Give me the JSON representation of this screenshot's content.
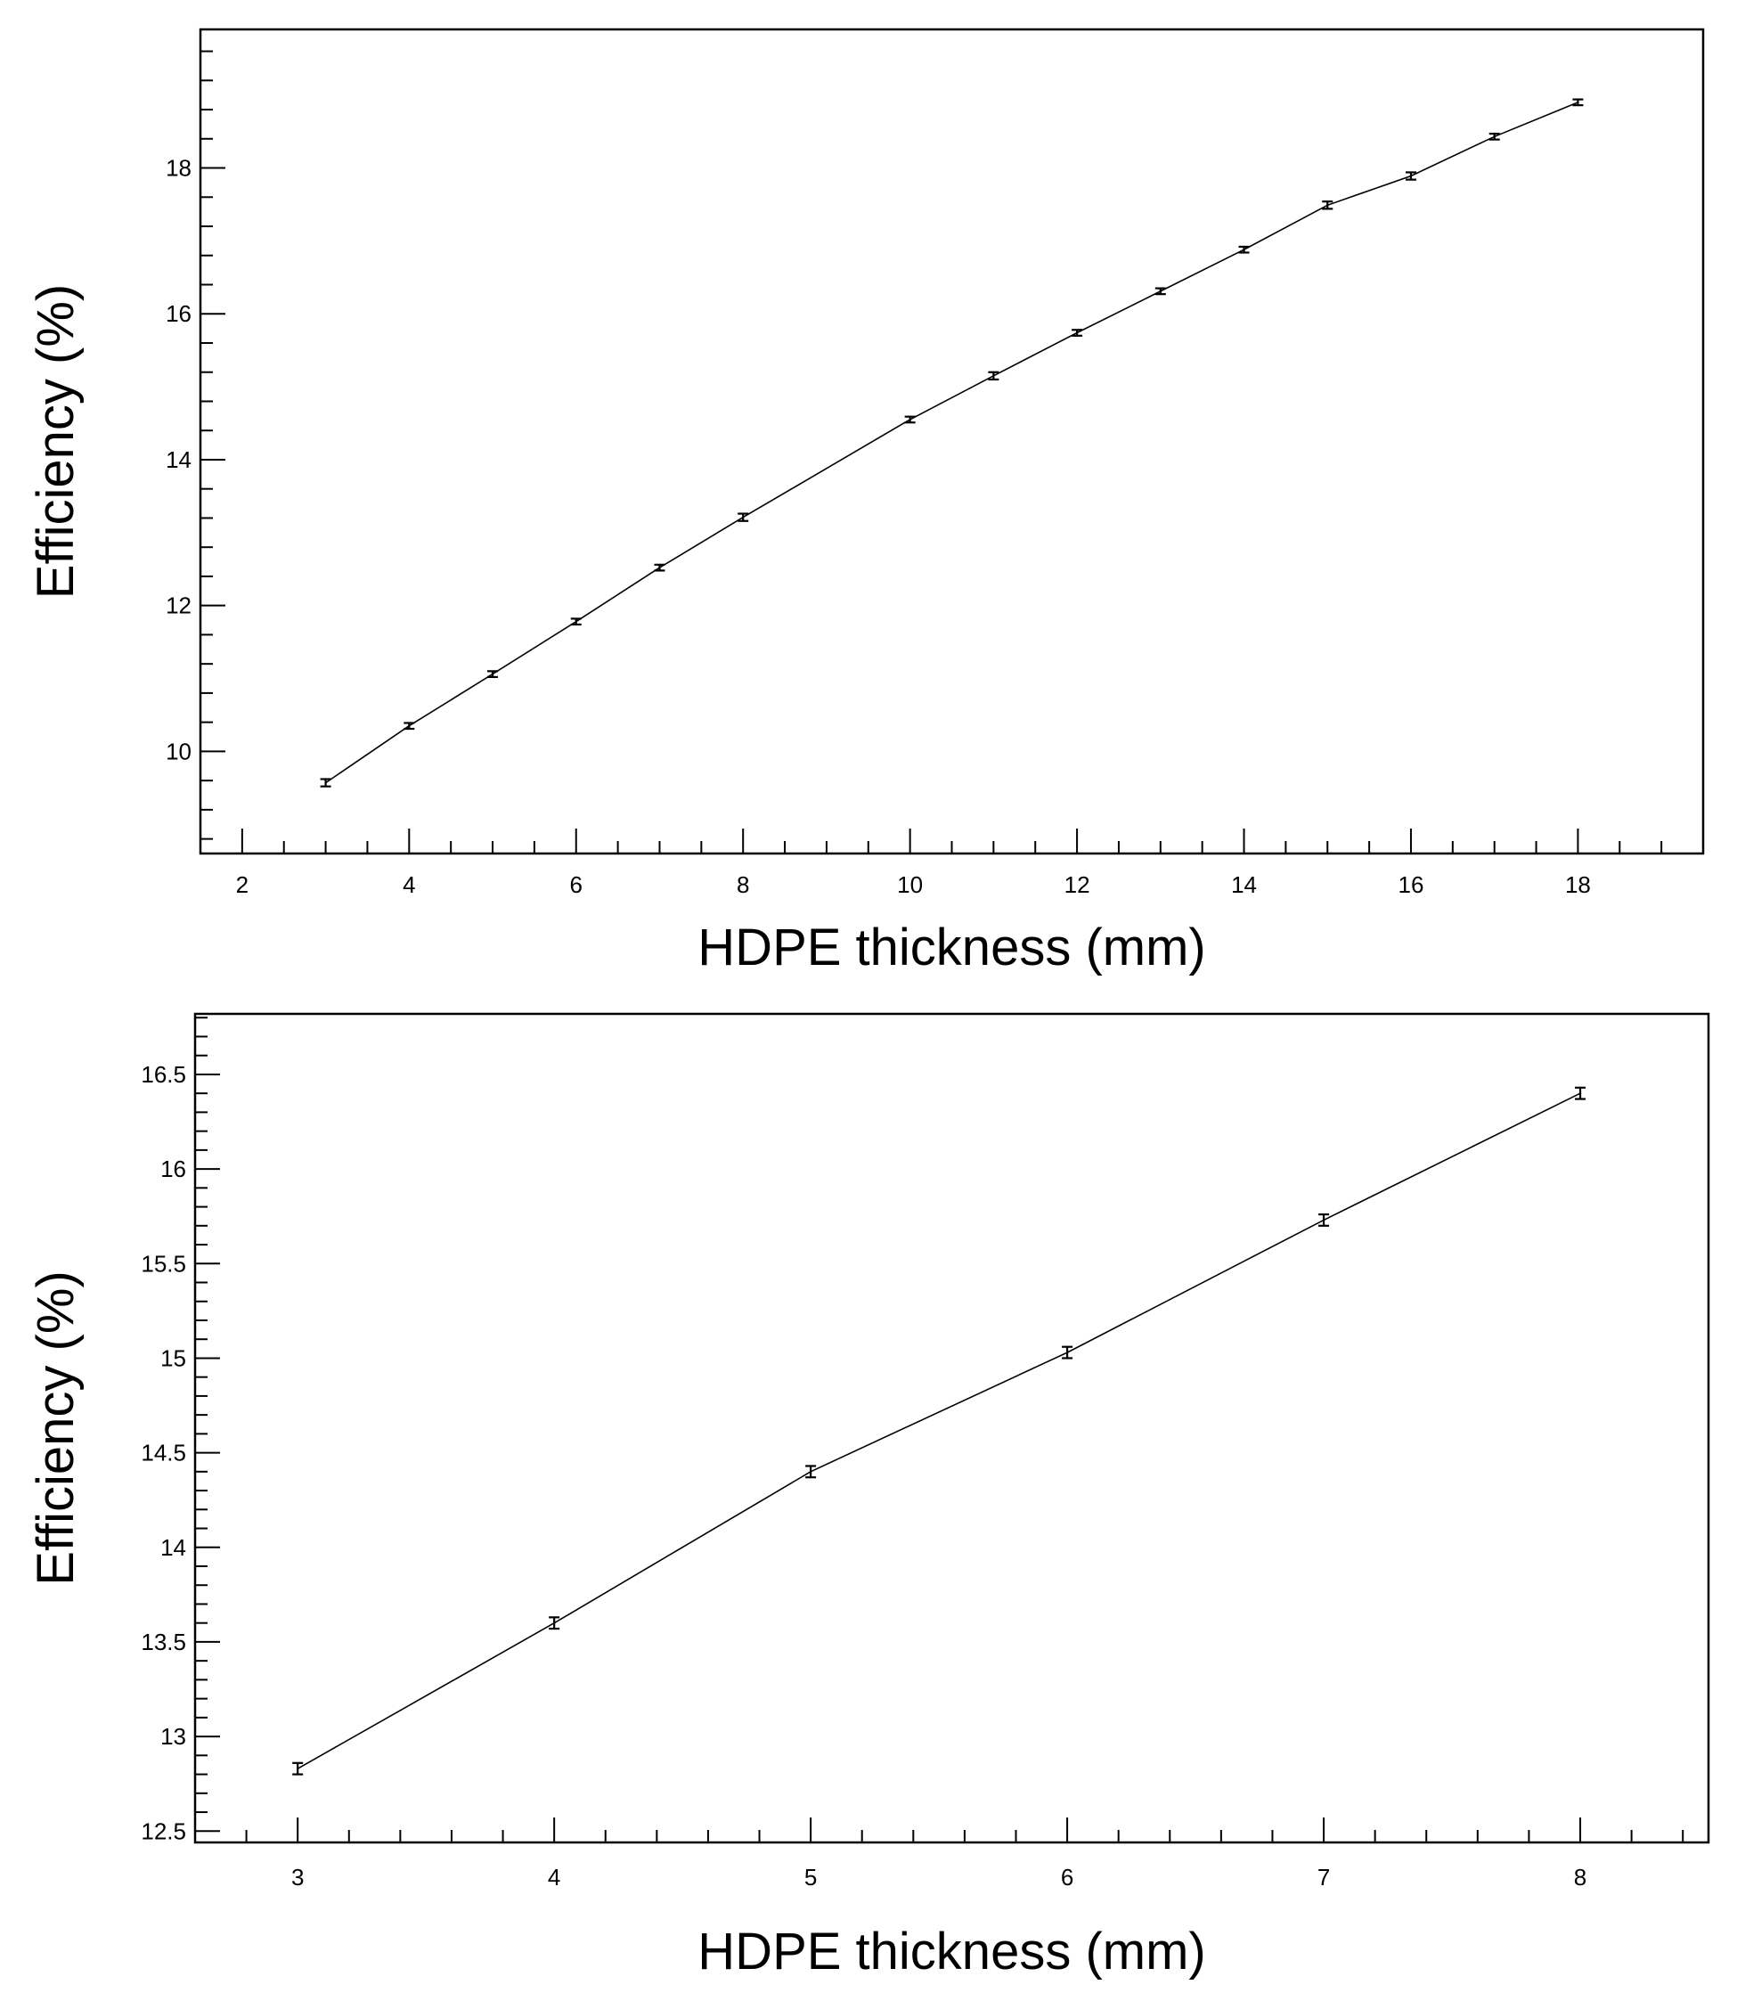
{
  "chart_data": [
    {
      "type": "line",
      "title": "",
      "xlabel": "HDPE thickness (mm)",
      "ylabel": "Efficiency (%)",
      "xlim": [
        1.5,
        19.5
      ],
      "ylim": [
        8.6,
        19.9
      ],
      "x_ticks": [
        2,
        4,
        6,
        8,
        10,
        12,
        14,
        16,
        18
      ],
      "y_ticks": [
        10,
        12,
        14,
        16,
        18
      ],
      "grid": false,
      "legend": "none",
      "error_bars": true,
      "series": [
        {
          "x": [
            3,
            4,
            5,
            6,
            7,
            8,
            10,
            11,
            12,
            13,
            14,
            15,
            16,
            17,
            18
          ],
          "y": [
            9.57,
            10.35,
            11.06,
            11.78,
            12.52,
            13.21,
            14.55,
            15.15,
            15.74,
            16.31,
            16.88,
            17.49,
            17.89,
            18.43,
            18.9
          ],
          "error": [
            0.05,
            0.04,
            0.04,
            0.04,
            0.04,
            0.05,
            0.04,
            0.05,
            0.04,
            0.04,
            0.04,
            0.05,
            0.05,
            0.04,
            0.04
          ]
        }
      ]
    },
    {
      "type": "line",
      "title": "",
      "xlabel": "HDPE thickness (mm)",
      "ylabel": "Efficiency (%)",
      "xlim": [
        2.6,
        8.5
      ],
      "ylim": [
        12.44,
        16.82
      ],
      "x_ticks": [
        3,
        4,
        5,
        6,
        7,
        8
      ],
      "y_ticks": [
        12.5,
        13,
        13.5,
        14,
        14.5,
        15,
        15.5,
        16,
        16.5
      ],
      "grid": false,
      "legend": "none",
      "error_bars": true,
      "series": [
        {
          "x": [
            3,
            4,
            5,
            6,
            7,
            8
          ],
          "y": [
            12.83,
            13.6,
            14.4,
            15.03,
            15.73,
            16.4
          ],
          "error": [
            0.03,
            0.03,
            0.03,
            0.03,
            0.03,
            0.03
          ]
        }
      ]
    }
  ]
}
